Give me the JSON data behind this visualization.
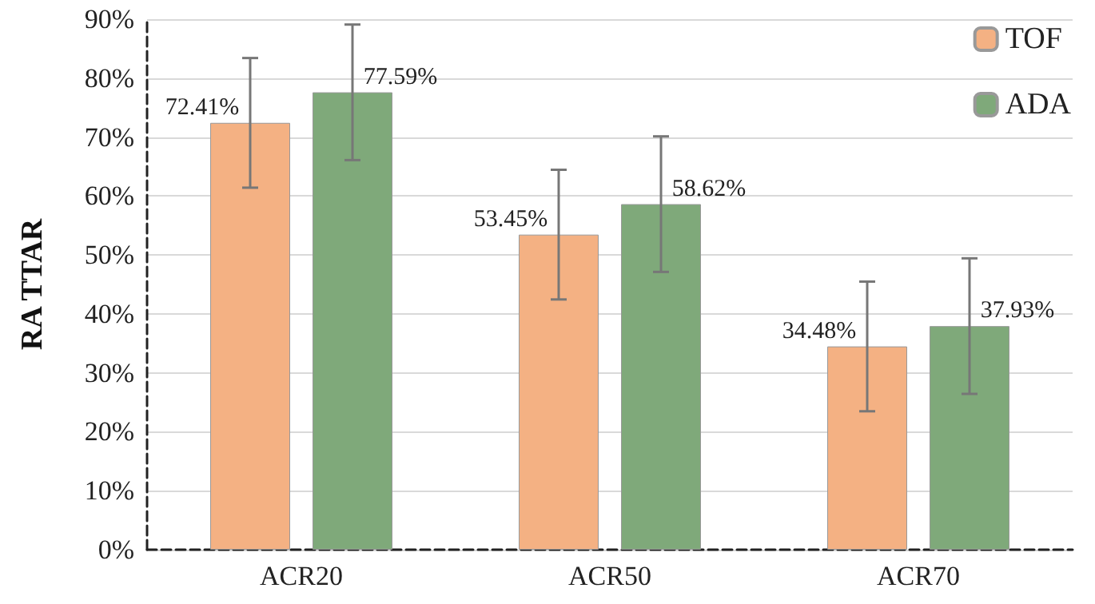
{
  "chart_data": {
    "type": "bar",
    "ylabel": "RA TTAR",
    "categories": [
      "ACR20",
      "ACR50",
      "ACR70"
    ],
    "series": [
      {
        "name": "TOF",
        "color": "#f4b183",
        "values": [
          72.41,
          53.45,
          34.48
        ],
        "errors": [
          11,
          11,
          11
        ],
        "value_labels": [
          "72.41%",
          "53.45%",
          "34.48%"
        ]
      },
      {
        "name": "ADA",
        "color": "#7fa97a",
        "values": [
          77.59,
          58.62,
          37.93
        ],
        "errors": [
          11.5,
          11.5,
          11.5
        ],
        "value_labels": [
          "77.59%",
          "58.62%",
          "37.93%"
        ]
      }
    ],
    "ylim": [
      0,
      90
    ],
    "yticks": [
      {
        "value": 0,
        "label": "0%"
      },
      {
        "value": 10,
        "label": "10%"
      },
      {
        "value": 20,
        "label": "20%"
      },
      {
        "value": 30,
        "label": "30%"
      },
      {
        "value": 40,
        "label": "40%"
      },
      {
        "value": 50,
        "label": "50%"
      },
      {
        "value": 60,
        "label": "60%"
      },
      {
        "value": 70,
        "label": "70%"
      },
      {
        "value": 80,
        "label": "80%"
      },
      {
        "value": 90,
        "label": "90%"
      }
    ],
    "grid": "y",
    "legend": "top right"
  }
}
